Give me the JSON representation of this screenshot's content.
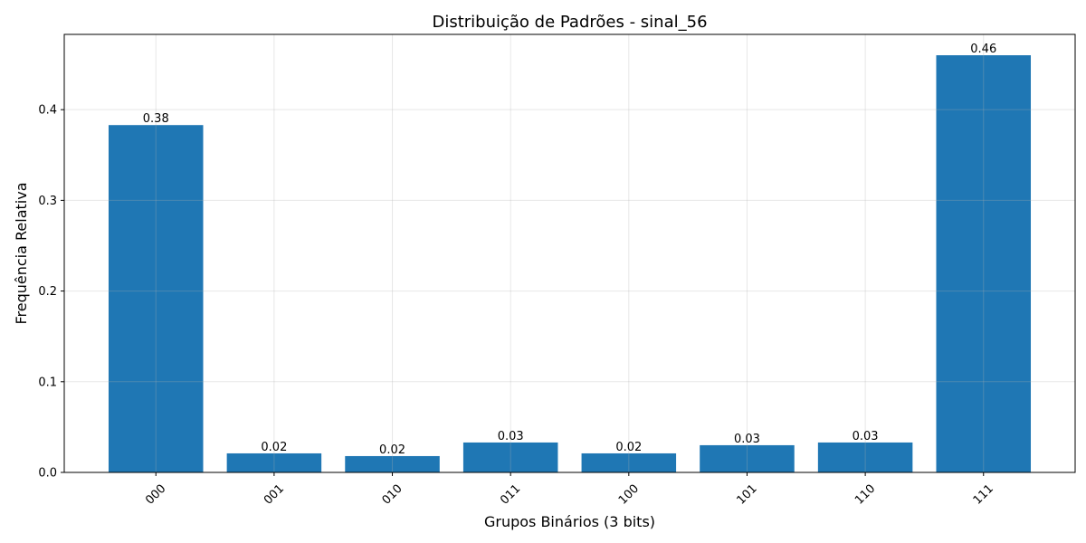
{
  "chart_data": {
    "type": "bar",
    "title": "Distribuição de Padrões - sinal_56",
    "xlabel": "Grupos Binários (3 bits)",
    "ylabel": "Frequência Relativa",
    "categories": [
      "000",
      "001",
      "010",
      "011",
      "100",
      "101",
      "110",
      "111"
    ],
    "values": [
      0.383,
      0.021,
      0.018,
      0.033,
      0.021,
      0.03,
      0.033,
      0.46
    ],
    "data_labels": [
      "0.38",
      "0.02",
      "0.02",
      "0.03",
      "0.02",
      "0.03",
      "0.03",
      "0.46"
    ],
    "ylim": [
      0,
      0.483
    ],
    "yticks": [
      0.0,
      0.1,
      0.2,
      0.3,
      0.4
    ],
    "ytick_labels": [
      "0.0",
      "0.1",
      "0.2",
      "0.3",
      "0.4"
    ],
    "xtick_rotation": 45,
    "grid": true,
    "bar_color": "#1f77b4"
  }
}
